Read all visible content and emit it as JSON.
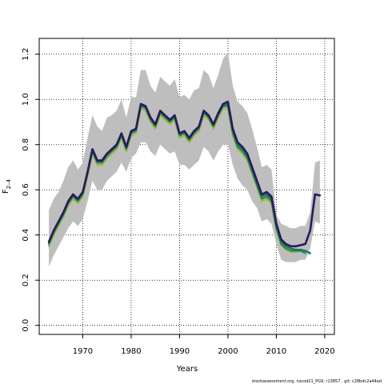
{
  "chart_data": {
    "type": "line",
    "xlabel": "Years",
    "ylabel": "F",
    "ylabel_subscript": "2–4",
    "xlim": [
      1961,
      2022
    ],
    "ylim": [
      -0.04,
      1.27
    ],
    "x_ticks": [
      1970,
      1980,
      1990,
      2000,
      2010,
      2020
    ],
    "y_ticks": [
      0.0,
      0.2,
      0.4,
      0.6,
      0.8,
      1.0,
      1.2
    ],
    "y_tick_labels": [
      "0.0",
      "0.2",
      "0.4",
      "0.6",
      "0.8",
      "1.0",
      "1.2"
    ],
    "grid": true,
    "footer": "stockassessment.org, nscod21_PG9, r13857 , git: c28bdc2a44ad",
    "band": {
      "color": "#bebebe",
      "x": [
        1963,
        1964,
        1965,
        1966,
        1967,
        1968,
        1969,
        1970,
        1971,
        1972,
        1973,
        1974,
        1975,
        1976,
        1977,
        1978,
        1979,
        1980,
        1981,
        1982,
        1983,
        1984,
        1985,
        1986,
        1987,
        1988,
        1989,
        1990,
        1991,
        1992,
        1993,
        1994,
        1995,
        1996,
        1997,
        1998,
        1999,
        2000,
        2001,
        2002,
        2003,
        2004,
        2005,
        2006,
        2007,
        2008,
        2009,
        2010,
        2011,
        2012,
        2013,
        2014,
        2015,
        2016,
        2017,
        2018,
        2019
      ],
      "lower": [
        0.26,
        0.31,
        0.35,
        0.39,
        0.43,
        0.46,
        0.44,
        0.47,
        0.55,
        0.64,
        0.6,
        0.6,
        0.64,
        0.66,
        0.68,
        0.72,
        0.68,
        0.74,
        0.76,
        0.81,
        0.81,
        0.77,
        0.75,
        0.8,
        0.78,
        0.76,
        0.77,
        0.71,
        0.71,
        0.69,
        0.71,
        0.73,
        0.79,
        0.77,
        0.73,
        0.77,
        0.8,
        0.8,
        0.71,
        0.65,
        0.62,
        0.6,
        0.55,
        0.52,
        0.46,
        0.47,
        0.45,
        0.36,
        0.29,
        0.28,
        0.28,
        0.28,
        0.29,
        0.29,
        0.34,
        0.46,
        0.45
      ],
      "upper": [
        0.51,
        0.56,
        0.59,
        0.64,
        0.7,
        0.73,
        0.69,
        0.72,
        0.83,
        0.93,
        0.88,
        0.86,
        0.92,
        0.93,
        0.95,
        1.0,
        0.92,
        1.01,
        1.01,
        1.13,
        1.13,
        1.06,
        1.03,
        1.1,
        1.08,
        1.06,
        1.09,
        1.01,
        1.02,
        1.0,
        1.04,
        1.05,
        1.13,
        1.11,
        1.05,
        1.11,
        1.18,
        1.21,
        1.06,
        0.99,
        0.97,
        0.94,
        0.87,
        0.79,
        0.7,
        0.71,
        0.69,
        0.49,
        0.45,
        0.44,
        0.43,
        0.43,
        0.44,
        0.44,
        0.5,
        0.72,
        0.73
      ]
    },
    "series": [
      {
        "color": "#2a1a5e",
        "x": [
          1963,
          1964,
          1965,
          1966,
          1967,
          1968,
          1969,
          1970,
          1971,
          1972,
          1973,
          1974,
          1975,
          1976,
          1977,
          1978,
          1979,
          1980,
          1981,
          1982,
          1983,
          1984,
          1985,
          1986,
          1987,
          1988,
          1989,
          1990,
          1991,
          1992,
          1993,
          1994,
          1995,
          1996,
          1997,
          1998,
          1999,
          2000,
          2001,
          2002,
          2003,
          2004,
          2005,
          2006,
          2007,
          2008,
          2009,
          2010,
          2011,
          2012,
          2013,
          2014,
          2015,
          2016,
          2017,
          2018,
          2019
        ],
        "y": [
          0.37,
          0.42,
          0.46,
          0.5,
          0.55,
          0.58,
          0.56,
          0.59,
          0.68,
          0.78,
          0.73,
          0.73,
          0.76,
          0.78,
          0.8,
          0.85,
          0.79,
          0.86,
          0.87,
          0.98,
          0.97,
          0.92,
          0.89,
          0.95,
          0.93,
          0.91,
          0.93,
          0.85,
          0.86,
          0.83,
          0.86,
          0.88,
          0.95,
          0.93,
          0.89,
          0.94,
          0.98,
          0.99,
          0.87,
          0.81,
          0.79,
          0.76,
          0.7,
          0.64,
          0.58,
          0.59,
          0.57,
          0.45,
          0.38,
          0.36,
          0.35,
          0.35,
          0.355,
          0.36,
          0.42,
          0.58,
          0.575
        ]
      },
      {
        "color": "#1f6f6a",
        "x": [
          1963,
          1964,
          1965,
          1966,
          1967,
          1968,
          1969,
          1970,
          1971,
          1972,
          1973,
          1974,
          1975,
          1976,
          1977,
          1978,
          1979,
          1980,
          1981,
          1982,
          1983,
          1984,
          1985,
          1986,
          1987,
          1988,
          1989,
          1990,
          1991,
          1992,
          1993,
          1994,
          1995,
          1996,
          1997,
          1998,
          1999,
          2000,
          2001,
          2002,
          2003,
          2004,
          2005,
          2006,
          2007,
          2008,
          2009,
          2010,
          2011,
          2012,
          2013,
          2014,
          2015,
          2016,
          2017
        ],
        "y": [
          0.365,
          0.415,
          0.455,
          0.495,
          0.545,
          0.575,
          0.555,
          0.585,
          0.675,
          0.775,
          0.725,
          0.725,
          0.755,
          0.775,
          0.795,
          0.845,
          0.785,
          0.855,
          0.865,
          0.975,
          0.965,
          0.915,
          0.885,
          0.945,
          0.925,
          0.905,
          0.925,
          0.845,
          0.855,
          0.825,
          0.855,
          0.875,
          0.945,
          0.925,
          0.885,
          0.935,
          0.975,
          0.98,
          0.86,
          0.8,
          0.78,
          0.75,
          0.69,
          0.63,
          0.57,
          0.58,
          0.56,
          0.44,
          0.37,
          0.35,
          0.34,
          0.335,
          0.335,
          0.33,
          0.32
        ]
      },
      {
        "color": "#2e8b3e",
        "x": [
          1963,
          1964,
          1965,
          1966,
          1967,
          1968,
          1969,
          1970,
          1971,
          1972,
          1973,
          1974,
          1975,
          1976,
          1977,
          1978,
          1979,
          1980,
          1981,
          1982,
          1983,
          1984,
          1985,
          1986,
          1987,
          1988,
          1989,
          1990,
          1991,
          1992,
          1993,
          1994,
          1995,
          1996,
          1997,
          1998,
          1999,
          2000,
          2001,
          2002,
          2003,
          2004,
          2005,
          2006,
          2007,
          2008,
          2009,
          2010,
          2011,
          2012,
          2013,
          2014,
          2015,
          2016
        ],
        "y": [
          0.36,
          0.41,
          0.45,
          0.49,
          0.54,
          0.57,
          0.55,
          0.58,
          0.67,
          0.77,
          0.72,
          0.72,
          0.75,
          0.77,
          0.79,
          0.84,
          0.78,
          0.85,
          0.86,
          0.97,
          0.96,
          0.91,
          0.88,
          0.94,
          0.92,
          0.9,
          0.92,
          0.84,
          0.85,
          0.82,
          0.85,
          0.87,
          0.94,
          0.92,
          0.88,
          0.93,
          0.97,
          0.97,
          0.85,
          0.79,
          0.77,
          0.74,
          0.68,
          0.62,
          0.56,
          0.57,
          0.55,
          0.43,
          0.36,
          0.34,
          0.33,
          0.33,
          0.33,
          0.32
        ]
      },
      {
        "color": "#9db84a",
        "x": [
          1963,
          1964,
          1965,
          1966,
          1967,
          1968,
          1969,
          1970,
          1971,
          1972,
          1973,
          1974,
          1975,
          1976,
          1977,
          1978,
          1979,
          1980,
          1981,
          1982,
          1983,
          1984,
          1985,
          1986,
          1987,
          1988,
          1989,
          1990,
          1991,
          1992,
          1993,
          1994,
          1995,
          1996,
          1997,
          1998,
          1999,
          2000,
          2001,
          2002,
          2003,
          2004,
          2005,
          2006,
          2007,
          2008,
          2009,
          2010,
          2011,
          2012,
          2013,
          2014,
          2015
        ],
        "y": [
          0.35,
          0.4,
          0.44,
          0.48,
          0.53,
          0.56,
          0.54,
          0.57,
          0.66,
          0.76,
          0.71,
          0.71,
          0.74,
          0.76,
          0.78,
          0.83,
          0.77,
          0.84,
          0.85,
          0.96,
          0.95,
          0.9,
          0.87,
          0.93,
          0.91,
          0.89,
          0.91,
          0.83,
          0.84,
          0.81,
          0.84,
          0.86,
          0.93,
          0.91,
          0.87,
          0.92,
          0.96,
          0.96,
          0.84,
          0.78,
          0.76,
          0.73,
          0.67,
          0.61,
          0.55,
          0.56,
          0.54,
          0.42,
          0.355,
          0.335,
          0.325,
          0.325,
          0.33
        ]
      },
      {
        "color": "#8fd3e0",
        "x": [
          2011,
          2012,
          2013,
          2014,
          2015,
          2016,
          2017
        ],
        "y": [
          0.36,
          0.345,
          0.335,
          0.33,
          0.325,
          0.32,
          0.315
        ]
      }
    ]
  }
}
